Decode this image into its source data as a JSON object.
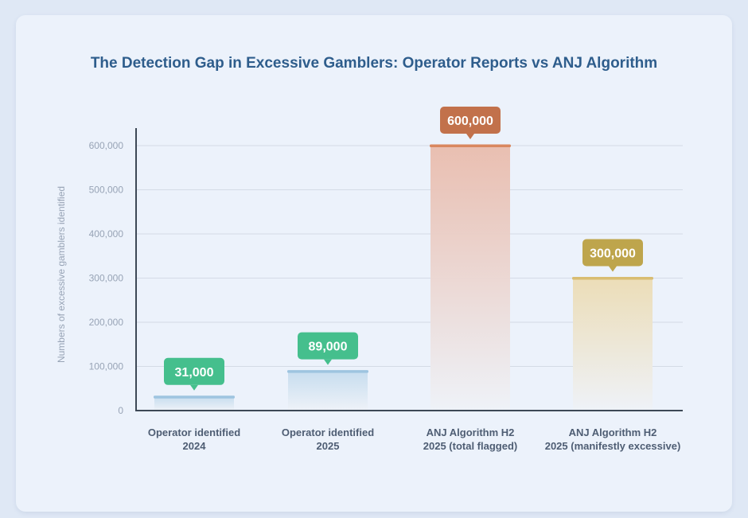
{
  "chart_data": {
    "type": "bar",
    "title": "The Detection Gap in Excessive Gamblers: Operator Reports vs ANJ Algorithm",
    "ylabel": "Numbers of excessive gamblers identified",
    "xlabel": "",
    "ylim": [
      0,
      640000
    ],
    "yticks": [
      0,
      100000,
      200000,
      300000,
      400000,
      500000,
      600000
    ],
    "ytick_labels": [
      "0",
      "100,000",
      "200,000",
      "300,000",
      "400,000",
      "500,000",
      "600,000"
    ],
    "grid": true,
    "categories": [
      [
        "Operator identified",
        "2024"
      ],
      [
        "Operator identified",
        "2025"
      ],
      [
        "ANJ Algorithm H2",
        "2025 (total flagged)"
      ],
      [
        "ANJ Algorithm H2",
        "2025 (manifestly excessive)"
      ]
    ],
    "values": [
      31000,
      89000,
      600000,
      300000
    ],
    "data_labels": [
      "31,000",
      "89,000",
      "600,000",
      "300,000"
    ],
    "colors": {
      "bar_tops": [
        "#9ec4e0",
        "#9ec4e0",
        "#d9875f",
        "#d8bd72"
      ],
      "bar_fill_top": [
        "#c5dcee",
        "#c5dcee",
        "#e9bcad",
        "#ecdcb4"
      ],
      "label_bg": [
        "#45bf8d",
        "#45bf8d",
        "#c2714b",
        "#bea54c"
      ],
      "axis": "#3d4856",
      "grid": "#d4dbe6"
    }
  }
}
